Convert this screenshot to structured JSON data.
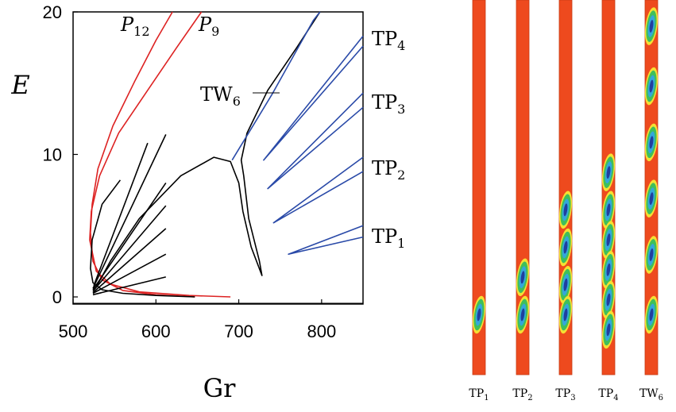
{
  "chart_data": [
    {
      "type": "line",
      "xlabel": "Gr",
      "ylabel": "E",
      "xlim": [
        500,
        850
      ],
      "ylim": [
        -0.5,
        20
      ],
      "x_ticks": [
        "500",
        "600",
        "700",
        "800"
      ],
      "y_ticks": [
        "0",
        "10",
        "20"
      ],
      "grid": false,
      "colors": {
        "red": "#dd2222",
        "black": "#000000",
        "blue": "#2a4aa8"
      },
      "series": [
        {
          "name": "P12",
          "label_base": "P",
          "label_sub": "12",
          "color": "red",
          "x": [
            647,
            600,
            560,
            535,
            524,
            521,
            523,
            530,
            548,
            575,
            600,
            620
          ],
          "y": [
            0.0,
            0.15,
            0.45,
            1.2,
            2.5,
            4.5,
            6.5,
            9.0,
            12.0,
            15.2,
            18.0,
            20.0
          ]
        },
        {
          "name": "P9",
          "label_base": "P",
          "label_sub": "9",
          "color": "red",
          "x": [
            690,
            640,
            580,
            545,
            528,
            520,
            522,
            532,
            555,
            590,
            625,
            655
          ],
          "y": [
            0.0,
            0.1,
            0.35,
            0.9,
            1.8,
            4.0,
            6.0,
            8.5,
            11.5,
            14.5,
            17.5,
            20.0
          ]
        },
        {
          "name": "fan",
          "color": "black",
          "paths": [
            {
              "x": [
                647,
                600,
                560,
                535,
                524,
                521,
                523,
                535,
                557
              ],
              "y": [
                0.0,
                0.1,
                0.25,
                0.5,
                1.0,
                2.0,
                4.0,
                6.5,
                8.2
              ]
            },
            {
              "x": [
                525,
                590
              ],
              "y": [
                0.8,
                10.8
              ]
            },
            {
              "x": [
                524,
                612
              ],
              "y": [
                0.6,
                11.4
              ]
            },
            {
              "x": [
                524,
                612
              ],
              "y": [
                0.5,
                8.0
              ]
            },
            {
              "x": [
                524,
                612
              ],
              "y": [
                0.4,
                6.4
              ]
            },
            {
              "x": [
                524,
                612
              ],
              "y": [
                0.3,
                4.8
              ]
            },
            {
              "x": [
                524,
                612
              ],
              "y": [
                0.25,
                3.0
              ]
            },
            {
              "x": [
                524,
                612
              ],
              "y": [
                0.15,
                1.4
              ]
            }
          ]
        },
        {
          "name": "TW6",
          "label_base": "TW",
          "label_sub": "6",
          "color": "black",
          "x": [
            528,
            545,
            580,
            630,
            670,
            690,
            700,
            705,
            715,
            728,
            725,
            712,
            706,
            703,
            710,
            735,
            770,
            798
          ],
          "y": [
            0.7,
            2.5,
            5.5,
            8.5,
            9.8,
            9.5,
            8.0,
            6.0,
            3.5,
            1.5,
            2.5,
            5.5,
            8.5,
            9.6,
            11.5,
            14.5,
            17.5,
            20.0
          ]
        },
        {
          "name": "TW6 upper",
          "color": "blue",
          "x": [
            692,
            715,
            740,
            765,
            790,
            798
          ],
          "y": [
            9.6,
            11.8,
            14.2,
            16.8,
            19.4,
            20.0
          ]
        },
        {
          "name": "TP1",
          "label_base": "TP",
          "label_sub": "1",
          "color": "blue",
          "x": [
            850,
            760,
            850
          ],
          "y": [
            5.0,
            3.0,
            4.2
          ]
        },
        {
          "name": "TP2",
          "label_base": "TP",
          "label_sub": "2",
          "color": "blue",
          "x": [
            850,
            742,
            850
          ],
          "y": [
            9.8,
            5.2,
            8.8
          ]
        },
        {
          "name": "TP3",
          "label_base": "TP",
          "label_sub": "3",
          "color": "blue",
          "x": [
            850,
            735,
            850
          ],
          "y": [
            14.3,
            7.6,
            13.3
          ]
        },
        {
          "name": "TP4",
          "label_base": "TP",
          "label_sub": "4",
          "color": "blue",
          "x": [
            850,
            730,
            850
          ],
          "y": [
            18.3,
            9.6,
            17.6
          ]
        }
      ]
    },
    {
      "type": "heatmap",
      "panels": [
        {
          "label_base": "TP",
          "label_sub": "1",
          "blobs": [
            0.84
          ]
        },
        {
          "label_base": "TP",
          "label_sub": "2",
          "blobs": [
            0.74,
            0.84
          ]
        },
        {
          "label_base": "TP",
          "label_sub": "3",
          "blobs": [
            0.56,
            0.66,
            0.76,
            0.84
          ]
        },
        {
          "label_base": "TP",
          "label_sub": "4",
          "blobs": [
            0.46,
            0.56,
            0.64,
            0.72,
            0.8,
            0.88
          ]
        },
        {
          "label_base": "TW",
          "label_sub": "6",
          "blobs": [
            0.07,
            0.23,
            0.38,
            0.53,
            0.68,
            0.84
          ]
        }
      ],
      "colors": {
        "background": "#ee4a1e",
        "ring_yellow": "#f4e033",
        "ring_green": "#3fbf5a",
        "core_cyan": "#34a7d9",
        "core_blue": "#1f3f9f"
      }
    }
  ]
}
